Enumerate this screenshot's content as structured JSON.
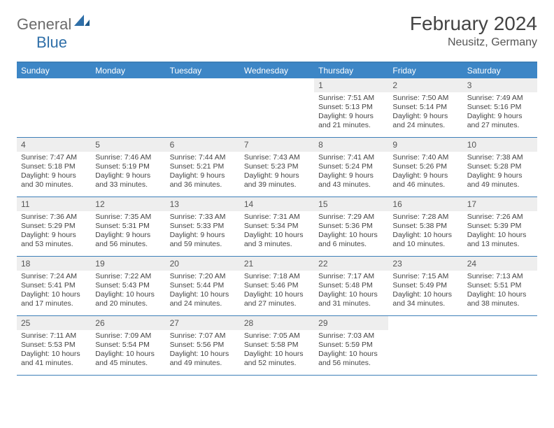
{
  "logo": {
    "general": "General",
    "blue": "Blue"
  },
  "title": "February 2024",
  "location": "Neusitz, Germany",
  "colors": {
    "header_bg": "#3d86c6",
    "header_text": "#ffffff",
    "border": "#3d7fb8",
    "daynum_bg": "#eeeeee",
    "text": "#444444"
  },
  "dow": [
    "Sunday",
    "Monday",
    "Tuesday",
    "Wednesday",
    "Thursday",
    "Friday",
    "Saturday"
  ],
  "weeks": [
    [
      null,
      null,
      null,
      null,
      {
        "n": "1",
        "sr": "Sunrise: 7:51 AM",
        "ss": "Sunset: 5:13 PM",
        "dl": "Daylight: 9 hours and 21 minutes."
      },
      {
        "n": "2",
        "sr": "Sunrise: 7:50 AM",
        "ss": "Sunset: 5:14 PM",
        "dl": "Daylight: 9 hours and 24 minutes."
      },
      {
        "n": "3",
        "sr": "Sunrise: 7:49 AM",
        "ss": "Sunset: 5:16 PM",
        "dl": "Daylight: 9 hours and 27 minutes."
      }
    ],
    [
      {
        "n": "4",
        "sr": "Sunrise: 7:47 AM",
        "ss": "Sunset: 5:18 PM",
        "dl": "Daylight: 9 hours and 30 minutes."
      },
      {
        "n": "5",
        "sr": "Sunrise: 7:46 AM",
        "ss": "Sunset: 5:19 PM",
        "dl": "Daylight: 9 hours and 33 minutes."
      },
      {
        "n": "6",
        "sr": "Sunrise: 7:44 AM",
        "ss": "Sunset: 5:21 PM",
        "dl": "Daylight: 9 hours and 36 minutes."
      },
      {
        "n": "7",
        "sr": "Sunrise: 7:43 AM",
        "ss": "Sunset: 5:23 PM",
        "dl": "Daylight: 9 hours and 39 minutes."
      },
      {
        "n": "8",
        "sr": "Sunrise: 7:41 AM",
        "ss": "Sunset: 5:24 PM",
        "dl": "Daylight: 9 hours and 43 minutes."
      },
      {
        "n": "9",
        "sr": "Sunrise: 7:40 AM",
        "ss": "Sunset: 5:26 PM",
        "dl": "Daylight: 9 hours and 46 minutes."
      },
      {
        "n": "10",
        "sr": "Sunrise: 7:38 AM",
        "ss": "Sunset: 5:28 PM",
        "dl": "Daylight: 9 hours and 49 minutes."
      }
    ],
    [
      {
        "n": "11",
        "sr": "Sunrise: 7:36 AM",
        "ss": "Sunset: 5:29 PM",
        "dl": "Daylight: 9 hours and 53 minutes."
      },
      {
        "n": "12",
        "sr": "Sunrise: 7:35 AM",
        "ss": "Sunset: 5:31 PM",
        "dl": "Daylight: 9 hours and 56 minutes."
      },
      {
        "n": "13",
        "sr": "Sunrise: 7:33 AM",
        "ss": "Sunset: 5:33 PM",
        "dl": "Daylight: 9 hours and 59 minutes."
      },
      {
        "n": "14",
        "sr": "Sunrise: 7:31 AM",
        "ss": "Sunset: 5:34 PM",
        "dl": "Daylight: 10 hours and 3 minutes."
      },
      {
        "n": "15",
        "sr": "Sunrise: 7:29 AM",
        "ss": "Sunset: 5:36 PM",
        "dl": "Daylight: 10 hours and 6 minutes."
      },
      {
        "n": "16",
        "sr": "Sunrise: 7:28 AM",
        "ss": "Sunset: 5:38 PM",
        "dl": "Daylight: 10 hours and 10 minutes."
      },
      {
        "n": "17",
        "sr": "Sunrise: 7:26 AM",
        "ss": "Sunset: 5:39 PM",
        "dl": "Daylight: 10 hours and 13 minutes."
      }
    ],
    [
      {
        "n": "18",
        "sr": "Sunrise: 7:24 AM",
        "ss": "Sunset: 5:41 PM",
        "dl": "Daylight: 10 hours and 17 minutes."
      },
      {
        "n": "19",
        "sr": "Sunrise: 7:22 AM",
        "ss": "Sunset: 5:43 PM",
        "dl": "Daylight: 10 hours and 20 minutes."
      },
      {
        "n": "20",
        "sr": "Sunrise: 7:20 AM",
        "ss": "Sunset: 5:44 PM",
        "dl": "Daylight: 10 hours and 24 minutes."
      },
      {
        "n": "21",
        "sr": "Sunrise: 7:18 AM",
        "ss": "Sunset: 5:46 PM",
        "dl": "Daylight: 10 hours and 27 minutes."
      },
      {
        "n": "22",
        "sr": "Sunrise: 7:17 AM",
        "ss": "Sunset: 5:48 PM",
        "dl": "Daylight: 10 hours and 31 minutes."
      },
      {
        "n": "23",
        "sr": "Sunrise: 7:15 AM",
        "ss": "Sunset: 5:49 PM",
        "dl": "Daylight: 10 hours and 34 minutes."
      },
      {
        "n": "24",
        "sr": "Sunrise: 7:13 AM",
        "ss": "Sunset: 5:51 PM",
        "dl": "Daylight: 10 hours and 38 minutes."
      }
    ],
    [
      {
        "n": "25",
        "sr": "Sunrise: 7:11 AM",
        "ss": "Sunset: 5:53 PM",
        "dl": "Daylight: 10 hours and 41 minutes."
      },
      {
        "n": "26",
        "sr": "Sunrise: 7:09 AM",
        "ss": "Sunset: 5:54 PM",
        "dl": "Daylight: 10 hours and 45 minutes."
      },
      {
        "n": "27",
        "sr": "Sunrise: 7:07 AM",
        "ss": "Sunset: 5:56 PM",
        "dl": "Daylight: 10 hours and 49 minutes."
      },
      {
        "n": "28",
        "sr": "Sunrise: 7:05 AM",
        "ss": "Sunset: 5:58 PM",
        "dl": "Daylight: 10 hours and 52 minutes."
      },
      {
        "n": "29",
        "sr": "Sunrise: 7:03 AM",
        "ss": "Sunset: 5:59 PM",
        "dl": "Daylight: 10 hours and 56 minutes."
      },
      null,
      null
    ]
  ]
}
